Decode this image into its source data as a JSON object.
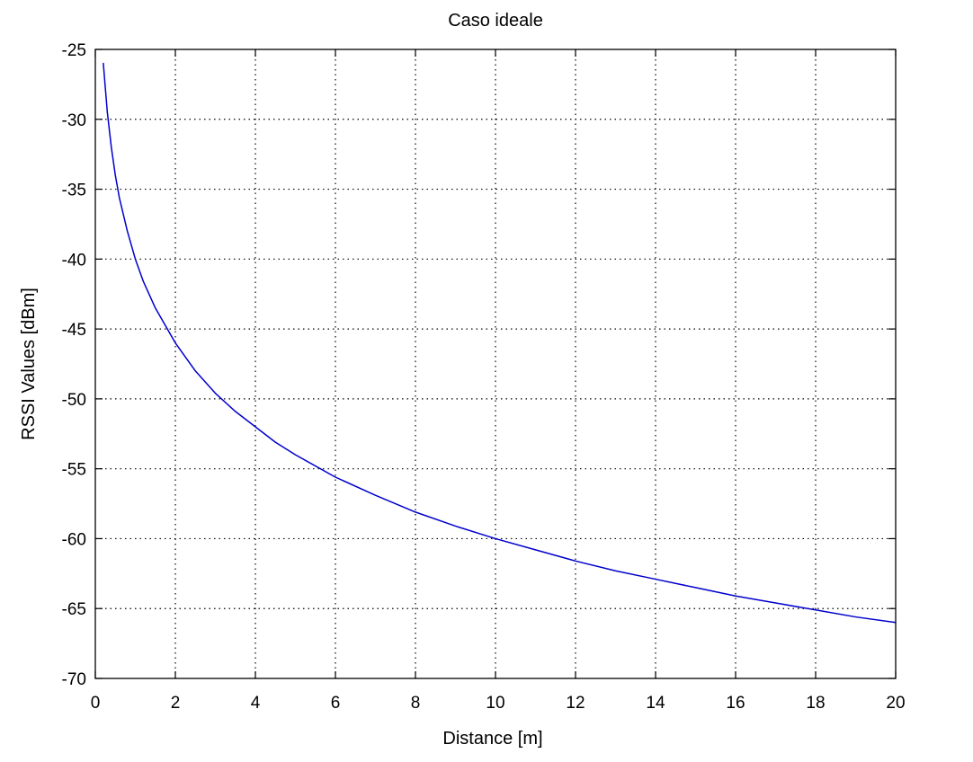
{
  "chart_data": {
    "type": "line",
    "title": "Caso ideale",
    "xlabel": "Distance [m]",
    "ylabel": "RSSI Values [dBm]",
    "xlim": [
      0,
      20
    ],
    "ylim": [
      -70,
      -25
    ],
    "xticks": [
      0,
      2,
      4,
      6,
      8,
      10,
      12,
      14,
      16,
      18,
      20
    ],
    "yticks": [
      -70,
      -65,
      -60,
      -55,
      -50,
      -45,
      -40,
      -35,
      -30,
      -25
    ],
    "grid": true,
    "series": [
      {
        "color": "#0000cc",
        "x": [
          0.2,
          0.3,
          0.4,
          0.5,
          0.6,
          0.8,
          1.0,
          1.2,
          1.5,
          2.0,
          2.5,
          3.0,
          3.5,
          4.0,
          4.5,
          5.0,
          6.0,
          7.0,
          8.0,
          9.0,
          10.0,
          11.0,
          12.0,
          13.0,
          14.0,
          15.0,
          16.0,
          17.0,
          18.0,
          19.0,
          20.0
        ],
        "y": [
          -26.0,
          -29.5,
          -32.0,
          -34.0,
          -35.6,
          -38.0,
          -40.0,
          -41.6,
          -43.5,
          -46.0,
          -48.0,
          -49.6,
          -50.9,
          -52.0,
          -53.1,
          -54.0,
          -55.6,
          -56.9,
          -58.1,
          -59.1,
          -60.0,
          -60.8,
          -61.6,
          -62.3,
          -62.9,
          -63.5,
          -64.1,
          -64.6,
          -65.1,
          -65.6,
          -66.0
        ]
      }
    ]
  }
}
